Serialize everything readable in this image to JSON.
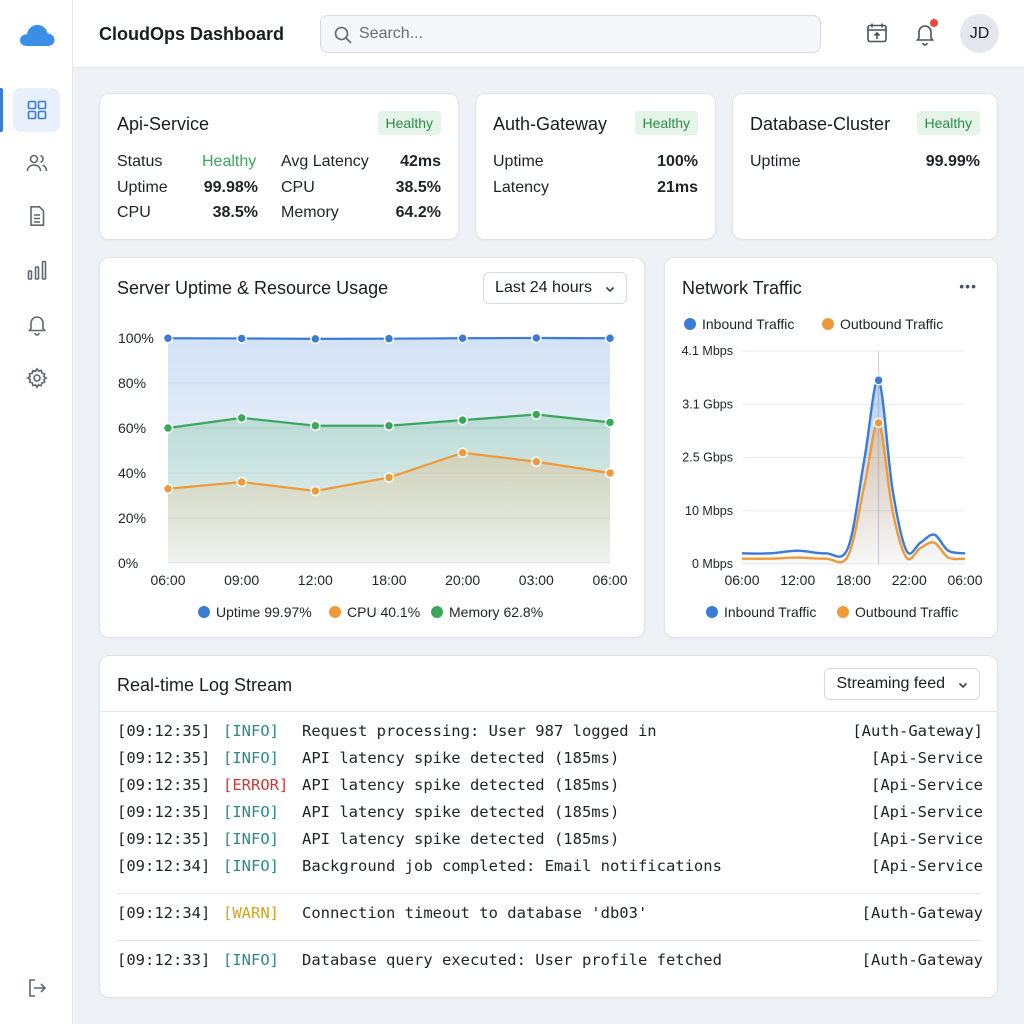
{
  "app": {
    "title": "CloudOps Dashboard"
  },
  "search": {
    "placeholder": "Search..."
  },
  "user": {
    "initials": "JD"
  },
  "sidebar": {
    "items": [
      {
        "icon": "dashboard-grid-icon",
        "active": true
      },
      {
        "icon": "users-icon"
      },
      {
        "icon": "document-icon"
      },
      {
        "icon": "bar-chart-icon"
      },
      {
        "icon": "bell-icon"
      },
      {
        "icon": "gear-icon"
      }
    ],
    "logout_icon": "logout-icon"
  },
  "colors": {
    "accent": "#3a7bd5",
    "uptime": "#3a7bd5",
    "cpu": "#ef9a3a",
    "memory": "#3aa85a",
    "healthy": "#3aa85a",
    "error": "#c93a35",
    "warn": "#d4a21c",
    "info": "#2a8a8a"
  },
  "services": [
    {
      "name": "Api-Service",
      "status": "Healthy",
      "rows": [
        {
          "label": "Status",
          "value": "Healthy",
          "label2": "Avg Latency",
          "value2": "42ms"
        },
        {
          "label": "Uptime",
          "value": "99.98%",
          "label2": "CPU",
          "value2": "38.5%"
        },
        {
          "label": "CPU",
          "value": "38.5%",
          "label2": "Memory",
          "value2": "64.2%"
        }
      ]
    },
    {
      "name": "Auth-Gateway",
      "status": "Healthy",
      "rows": [
        {
          "label": "Uptime",
          "value": "100%"
        },
        {
          "label": "Latency",
          "value": "21ms"
        }
      ]
    },
    {
      "name": "Database-Cluster",
      "status": "Healthy",
      "rows": [
        {
          "label": "Uptime",
          "value": "99.99%"
        }
      ]
    }
  ],
  "uptime_panel": {
    "title": "Server Uptime & Resource Usage",
    "range": "Last 24 hours",
    "legend": [
      {
        "label": "Uptime 99.97%",
        "color": "#3a7bd5"
      },
      {
        "label": "CPU 40.1%",
        "color": "#ef9a3a"
      },
      {
        "label": "Memory 62.8%",
        "color": "#3aa85a"
      }
    ]
  },
  "network_panel": {
    "title": "Network Traffic",
    "menu": "•••",
    "legend_top": [
      {
        "label": "Inbound Traffic",
        "color": "#3a7bd5"
      },
      {
        "label": "Outbound Traffic",
        "color": "#ef9a3a"
      }
    ],
    "legend_bottom": [
      {
        "label": "Inbound Traffic",
        "color": "#3a7bd5"
      },
      {
        "label": "Outbound Traffic",
        "color": "#ef9a3a"
      }
    ]
  },
  "chart_data": [
    {
      "type": "area",
      "categories": [
        "06:00",
        "09:00",
        "12:00",
        "18:00",
        "20:00",
        "03:00",
        "06:00"
      ],
      "ylim": [
        0,
        100
      ],
      "yticks": [
        "0%",
        "20%",
        "40%",
        "60%",
        "80%",
        "100%"
      ],
      "grid": true,
      "legend": "bottom",
      "series": [
        {
          "name": "Uptime",
          "color": "#3a7bd5",
          "values": [
            99.9,
            99.8,
            99.6,
            99.7,
            99.9,
            100,
            99.9
          ]
        },
        {
          "name": "Memory",
          "color": "#3aa85a",
          "values": [
            60,
            64.5,
            61,
            61,
            63.5,
            66,
            62.5
          ]
        },
        {
          "name": "CPU",
          "color": "#ef9a3a",
          "values": [
            33,
            36,
            32,
            38,
            49,
            45,
            40
          ]
        }
      ]
    },
    {
      "type": "line",
      "x": [
        "06:00",
        "12:00",
        "18:00",
        "22:00",
        "06:00"
      ],
      "yticks": [
        "0 Mbps",
        "10 Mbps",
        "2.5 Gbps",
        "3.1 Gbps",
        "4.1 Mbps"
      ],
      "grid": true,
      "legend": "top",
      "series": [
        {
          "name": "Inbound Traffic",
          "color": "#3a7bd5",
          "points": [
            [
              0,
              0.2
            ],
            [
              0.5,
              0.2
            ],
            [
              1,
              0.25
            ],
            [
              1.5,
              0.2
            ],
            [
              1.9,
              0.3
            ],
            [
              2.2,
              2.0
            ],
            [
              2.45,
              3.45
            ],
            [
              2.7,
              1.4
            ],
            [
              2.95,
              0.25
            ],
            [
              3.2,
              0.4
            ],
            [
              3.45,
              0.55
            ],
            [
              3.7,
              0.25
            ],
            [
              4,
              0.2
            ]
          ]
        },
        {
          "name": "Outbound Traffic",
          "color": "#ef9a3a",
          "points": [
            [
              0,
              0.1
            ],
            [
              0.5,
              0.1
            ],
            [
              1,
              0.12
            ],
            [
              1.5,
              0.1
            ],
            [
              1.9,
              0.15
            ],
            [
              2.2,
              1.5
            ],
            [
              2.45,
              2.65
            ],
            [
              2.7,
              1.0
            ],
            [
              2.95,
              0.12
            ],
            [
              3.2,
              0.3
            ],
            [
              3.45,
              0.4
            ],
            [
              3.7,
              0.12
            ],
            [
              4,
              0.1
            ]
          ]
        }
      ]
    }
  ],
  "logs": {
    "title": "Real-time Log Stream",
    "filter": "Streaming feed",
    "entries": [
      {
        "ts": "[09:12:35]",
        "level": "[INFO]",
        "kind": "info",
        "msg": "Request processing: User 987 logged in",
        "src": "[Auth-Gateway]"
      },
      {
        "ts": "[09:12:35]",
        "level": "[INFO]",
        "kind": "info",
        "msg": "API latency spike detected (185ms)",
        "src": "[Api-Service"
      },
      {
        "ts": "[09:12:35]",
        "level": "[ERROR]",
        "kind": "error",
        "msg": "API latency spike detected (185ms)",
        "src": "[Api-Service"
      },
      {
        "ts": "[09:12:35]",
        "level": "[INFO]",
        "kind": "info",
        "msg": "API latency spike detected (185ms)",
        "src": "[Api-Service"
      },
      {
        "ts": "[09:12:35]",
        "level": "[INFO]",
        "kind": "info",
        "msg": "API latency spike detected (185ms)",
        "src": "[Api-Service"
      },
      {
        "ts": "[09:12:34]",
        "level": "[INFO]",
        "kind": "info",
        "msg": "Background job completed: Email notifications",
        "src": "[Api-Service"
      },
      {
        "ts": "[09:12:34]",
        "level": "[WARN]",
        "kind": "warn",
        "msg": "Connection timeout to database 'db03'",
        "src": "[Auth-Gateway"
      },
      {
        "ts": "[09:12:33]",
        "level": "[INFO]",
        "kind": "info",
        "msg": "Database query executed: User profile fetched",
        "src": "[Auth-Gateway"
      }
    ]
  }
}
